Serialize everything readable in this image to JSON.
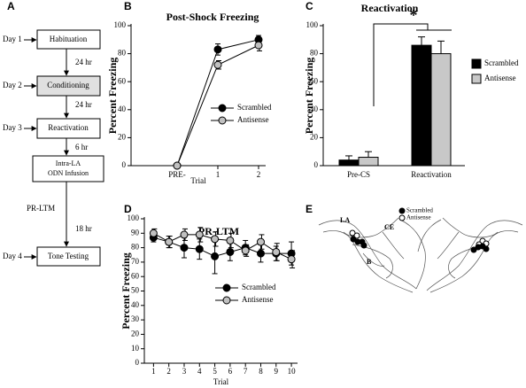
{
  "panel_labels": [
    "A",
    "B",
    "C",
    "D",
    "E"
  ],
  "flowchart": {
    "days": [
      "Day 1",
      "Day 2",
      "Day 3",
      "Day 4"
    ],
    "steps": [
      [
        "Habituation"
      ],
      [
        "Conditioning"
      ],
      [
        "Reactivation"
      ],
      [
        "Intra-LA",
        "ODN Infusion"
      ],
      [
        "Tone Testing"
      ]
    ],
    "intervals": [
      "24 hr",
      "24 hr",
      "6 hr",
      "18 hr"
    ],
    "test_label": "PR-LTM"
  },
  "chart_data": [
    {
      "type": "line",
      "title": "Post-Shock Freezing",
      "x_label": "Trial",
      "y_label": "Percent Freezing",
      "categories": [
        "PRE-",
        "1",
        "2"
      ],
      "ylim": [
        0,
        100
      ],
      "yticks": [
        0,
        20,
        40,
        60,
        80,
        100
      ],
      "series": [
        {
          "name": "Scrambled",
          "color": "#000000",
          "values": [
            0,
            83,
            90
          ],
          "errors": [
            1,
            4,
            3
          ]
        },
        {
          "name": "Antisense",
          "color": "#c0c0c0",
          "values": [
            0,
            72,
            86
          ],
          "errors": [
            1,
            3,
            4
          ]
        }
      ]
    },
    {
      "type": "bar",
      "title": "Reactivation",
      "y_label": "Percent Freezing",
      "annotation": "*",
      "categories": [
        "Pre-CS",
        "Reactivation"
      ],
      "ylim": [
        0,
        100
      ],
      "yticks": [
        0,
        20,
        40,
        60,
        80,
        100
      ],
      "series": [
        {
          "name": "Scrambled",
          "color": "#000000",
          "values": [
            4,
            86
          ],
          "errors": [
            3,
            6
          ]
        },
        {
          "name": "Antisense",
          "color": "#c8c8c8",
          "values": [
            6,
            80
          ],
          "errors": [
            4,
            9
          ]
        }
      ]
    },
    {
      "type": "line",
      "title": "PR-LTM",
      "x_label": "Trial",
      "y_label": "Percent Freezing",
      "x": [
        1,
        2,
        3,
        4,
        5,
        6,
        7,
        8,
        9,
        10
      ],
      "xlim": [
        0.4,
        10.4
      ],
      "xticks": [
        1,
        2,
        3,
        4,
        5,
        6,
        7,
        8,
        9,
        10
      ],
      "ylim": [
        0,
        100
      ],
      "yticks": [
        0,
        10,
        20,
        30,
        40,
        50,
        60,
        70,
        80,
        90,
        100
      ],
      "series": [
        {
          "name": "Scrambled",
          "color": "#000000",
          "values": [
            87,
            84,
            80,
            79,
            74,
            77,
            80,
            76,
            76,
            76
          ],
          "errors": [
            3,
            4,
            7,
            7,
            12,
            6,
            5,
            6,
            5,
            8
          ]
        },
        {
          "name": "Antisense",
          "color": "#c0c0c0",
          "values": [
            90,
            84,
            89,
            89,
            86,
            85,
            78,
            84,
            77,
            72
          ],
          "errors": [
            3,
            4,
            4,
            5,
            5,
            5,
            4,
            5,
            6,
            6
          ]
        }
      ]
    }
  ],
  "brain": {
    "labels": [
      "LA",
      "CE",
      "B"
    ],
    "legend": [
      "Scrambled",
      "Antisense"
    ]
  }
}
